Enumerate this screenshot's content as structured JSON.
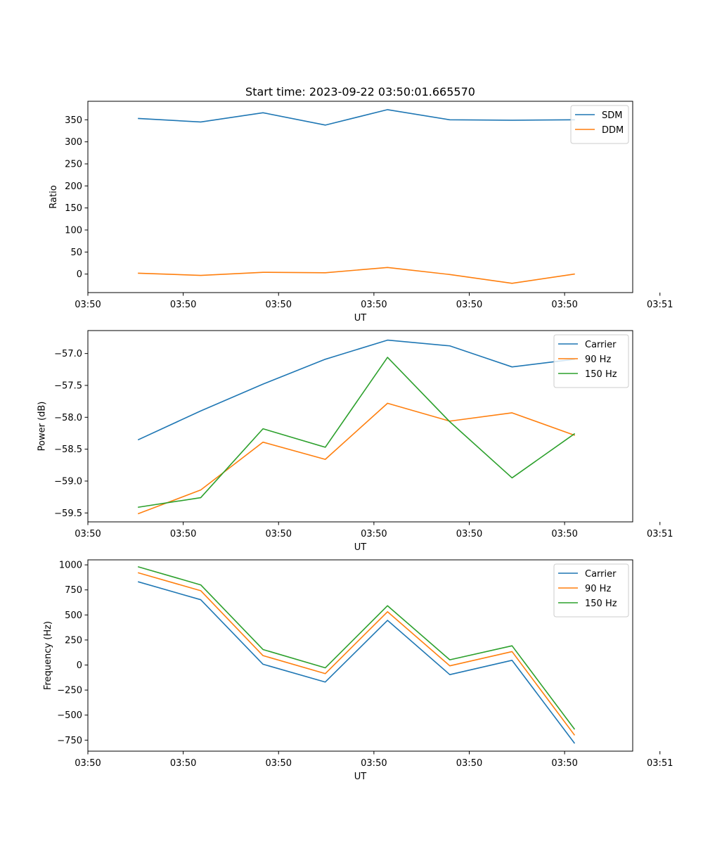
{
  "colors": {
    "blue": "#1f77b4",
    "orange": "#ff7f0e",
    "green": "#2ca02c"
  },
  "chart_data": [
    {
      "type": "line",
      "title": "Start time: 2023-09-22 03:50:01.665570",
      "xlabel": "UT",
      "ylabel": "Ratio",
      "x": [
        1,
        2,
        3,
        4,
        5,
        6,
        7,
        8
      ],
      "xlim": [
        0.1875,
        8.9375
      ],
      "ylim": [
        -42,
        392
      ],
      "xticks": [
        0.1875,
        1.71875,
        3.25,
        4.78125,
        6.3125,
        7.84375,
        9.375
      ],
      "xtick_labels": [
        "03:50",
        "03:50",
        "03:50",
        "03:50",
        "03:50",
        "03:50",
        "03:51"
      ],
      "yticks": [
        0,
        50,
        100,
        150,
        200,
        250,
        300,
        350
      ],
      "ytick_labels": [
        "0",
        "50",
        "100",
        "150",
        "200",
        "250",
        "300",
        "350"
      ],
      "legend_location": "top-right",
      "series": [
        {
          "name": "SDM",
          "color": "#1f77b4",
          "values": [
            353,
            345,
            366,
            338,
            373,
            350,
            349,
            350
          ]
        },
        {
          "name": "DDM",
          "color": "#ff7f0e",
          "values": [
            2,
            -3,
            4,
            3,
            15,
            -1,
            -21,
            0
          ]
        }
      ]
    },
    {
      "type": "line",
      "title": "",
      "xlabel": "UT",
      "ylabel": "Power (dB)",
      "x": [
        1,
        2,
        3,
        4,
        5,
        6,
        7,
        8
      ],
      "xlim": [
        0.1875,
        8.9375
      ],
      "ylim": [
        -59.64,
        -56.64
      ],
      "xticks": [
        0.1875,
        1.71875,
        3.25,
        4.78125,
        6.3125,
        7.84375,
        9.375
      ],
      "xtick_labels": [
        "03:50",
        "03:50",
        "03:50",
        "03:50",
        "03:50",
        "03:50",
        "03:51"
      ],
      "yticks": [
        -59.5,
        -59.0,
        -58.5,
        -58.0,
        -57.5,
        -57.0
      ],
      "ytick_labels": [
        "−59.5",
        "−59.0",
        "−58.5",
        "−58.0",
        "−57.5",
        "−57.0"
      ],
      "legend_location": "top-right",
      "series": [
        {
          "name": "Carrier",
          "color": "#1f77b4",
          "values": [
            -58.35,
            -57.9,
            -57.48,
            -57.09,
            -56.79,
            -56.88,
            -57.21,
            -57.09
          ]
        },
        {
          "name": "90 Hz",
          "color": "#ff7f0e",
          "values": [
            -59.51,
            -59.14,
            -58.39,
            -58.66,
            -57.78,
            -58.06,
            -57.93,
            -58.28
          ]
        },
        {
          "name": "150 Hz",
          "color": "#2ca02c",
          "values": [
            -59.41,
            -59.26,
            -58.18,
            -58.47,
            -57.06,
            -58.07,
            -58.95,
            -58.26
          ]
        }
      ]
    },
    {
      "type": "line",
      "title": "",
      "xlabel": "UT",
      "ylabel": "Frequency (Hz)",
      "x": [
        1,
        2,
        3,
        4,
        5,
        6,
        7,
        8
      ],
      "xlim": [
        0.1875,
        8.9375
      ],
      "ylim": [
        -860,
        1050
      ],
      "xticks": [
        0.1875,
        1.71875,
        3.25,
        4.78125,
        6.3125,
        7.84375,
        9.375
      ],
      "xtick_labels": [
        "03:50",
        "03:50",
        "03:50",
        "03:50",
        "03:50",
        "03:50",
        "03:51"
      ],
      "yticks": [
        -750,
        -500,
        -250,
        0,
        250,
        500,
        750,
        1000
      ],
      "ytick_labels": [
        "−750",
        "−500",
        "−250",
        "0",
        "250",
        "500",
        "750",
        "1000"
      ],
      "legend_location": "top-right",
      "series": [
        {
          "name": "Carrier",
          "color": "#1f77b4",
          "values": [
            830,
            652,
            8,
            -170,
            446,
            -96,
            47,
            -778
          ]
        },
        {
          "name": "90 Hz",
          "color": "#ff7f0e",
          "values": [
            920,
            742,
            94,
            -86,
            532,
            -8,
            134,
            -697
          ]
        },
        {
          "name": "150 Hz",
          "color": "#2ca02c",
          "values": [
            980,
            800,
            155,
            -28,
            592,
            52,
            192,
            -638
          ]
        }
      ]
    }
  ]
}
